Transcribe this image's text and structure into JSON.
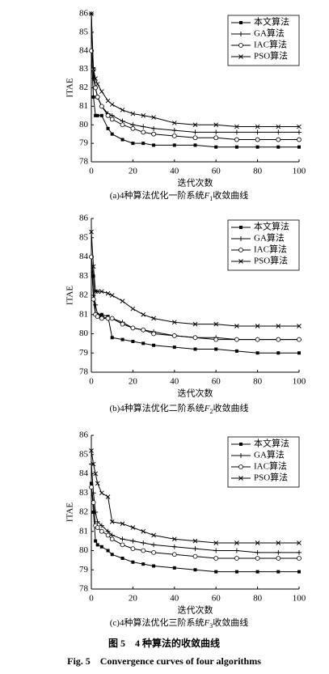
{
  "chart_data": [
    {
      "type": "line",
      "caption": [
        "(a)4种算法优化一阶系统",
        "F",
        "1",
        "收敛曲线"
      ],
      "xlabel": "迭代次数",
      "ylabel": "ITAE",
      "xlim": [
        0,
        100
      ],
      "xticks": [
        0,
        20,
        40,
        60,
        80,
        100
      ],
      "ylim": [
        78,
        86
      ],
      "yticks": [
        78,
        79,
        80,
        81,
        82,
        83,
        84,
        85,
        86
      ],
      "legend": "upper right",
      "x": [
        0,
        1,
        2,
        3,
        5,
        8,
        10,
        15,
        20,
        25,
        30,
        40,
        50,
        60,
        70,
        80,
        90,
        100
      ],
      "series": [
        {
          "name": "本文算法",
          "color": "#000000",
          "marker": "square",
          "values": [
            84,
            81.5,
            80.5,
            80.5,
            80.5,
            79.8,
            79.5,
            79.2,
            79.0,
            79.0,
            78.9,
            78.9,
            78.9,
            78.8,
            78.8,
            78.8,
            78.8,
            78.8
          ]
        },
        {
          "name": "GA算法",
          "color": "#000000",
          "marker": "plus",
          "values": [
            86,
            82.5,
            82,
            81.5,
            81,
            80.6,
            80.5,
            80.2,
            80.0,
            79.9,
            79.8,
            79.7,
            79.6,
            79.6,
            79.6,
            79.6,
            79.6,
            79.6
          ]
        },
        {
          "name": "IAC算法",
          "color": "#000000",
          "marker": "circle",
          "values": [
            84,
            83,
            82,
            81.5,
            81,
            80.5,
            80.3,
            80.0,
            79.8,
            79.6,
            79.5,
            79.4,
            79.3,
            79.3,
            79.2,
            79.2,
            79.2,
            79.2
          ]
        },
        {
          "name": "PSO算法",
          "color": "#000000",
          "marker": "x",
          "values": [
            86,
            83,
            82.5,
            82.2,
            81.8,
            81.3,
            81.1,
            80.8,
            80.6,
            80.5,
            80.4,
            80.1,
            80.0,
            80.0,
            79.9,
            79.9,
            79.9,
            79.9
          ]
        }
      ]
    },
    {
      "type": "line",
      "caption": [
        "(b)4种算法优化二阶系统",
        "F",
        "2",
        "收敛曲线"
      ],
      "xlabel": "迭代次数",
      "ylabel": "ITAE",
      "xlim": [
        0,
        100
      ],
      "xticks": [
        0,
        20,
        40,
        60,
        80,
        100
      ],
      "ylim": [
        78,
        86
      ],
      "yticks": [
        78,
        79,
        80,
        81,
        82,
        83,
        84,
        85,
        86
      ],
      "legend": "upper right",
      "x": [
        0,
        1,
        2,
        3,
        5,
        8,
        10,
        15,
        20,
        25,
        30,
        40,
        50,
        60,
        70,
        80,
        90,
        100
      ],
      "series": [
        {
          "name": "本文算法",
          "color": "#000000",
          "marker": "square",
          "values": [
            84,
            83,
            81,
            81,
            81,
            80.9,
            79.8,
            79.7,
            79.6,
            79.5,
            79.4,
            79.3,
            79.2,
            79.2,
            79.1,
            79.0,
            79.0,
            79.0
          ]
        },
        {
          "name": "GA算法",
          "color": "#000000",
          "marker": "plus",
          "values": [
            84,
            82,
            81.5,
            81,
            80.9,
            80.8,
            80.8,
            80.6,
            80.3,
            80.2,
            80.1,
            79.9,
            79.8,
            79.8,
            79.7,
            79.7,
            79.7,
            79.7
          ]
        },
        {
          "name": "IAC算法",
          "color": "#000000",
          "marker": "circle",
          "values": [
            84,
            81.8,
            81,
            80.9,
            80.8,
            80.8,
            80.8,
            80.5,
            80.3,
            80.2,
            80.0,
            79.9,
            79.8,
            79.7,
            79.7,
            79.7,
            79.7,
            79.7
          ]
        },
        {
          "name": "PSO算法",
          "color": "#000000",
          "marker": "x",
          "values": [
            85.3,
            83.5,
            82.2,
            82.2,
            82.2,
            82.1,
            82.0,
            81.7,
            81.3,
            81.0,
            80.8,
            80.6,
            80.5,
            80.5,
            80.4,
            80.4,
            80.4,
            80.4
          ]
        }
      ]
    },
    {
      "type": "line",
      "caption": [
        "(c)4种算法优化三阶系统",
        "F",
        "3",
        "收敛曲线"
      ],
      "xlabel": "迭代次数",
      "ylabel": "ITAE",
      "xlim": [
        0,
        100
      ],
      "xticks": [
        0,
        20,
        40,
        60,
        80,
        100
      ],
      "ylim": [
        78,
        86
      ],
      "yticks": [
        78,
        79,
        80,
        81,
        82,
        83,
        84,
        85,
        86
      ],
      "legend": "upper right",
      "x": [
        0,
        1,
        2,
        3,
        5,
        8,
        10,
        15,
        20,
        25,
        30,
        40,
        50,
        60,
        70,
        80,
        90,
        100
      ],
      "series": [
        {
          "name": "本文算法",
          "color": "#000000",
          "marker": "square",
          "values": [
            83.5,
            82,
            80.5,
            80.3,
            80.2,
            80.0,
            79.8,
            79.6,
            79.4,
            79.3,
            79.2,
            79.1,
            79.0,
            78.9,
            78.9,
            78.9,
            78.9,
            78.9
          ]
        },
        {
          "name": "GA算法",
          "color": "#000000",
          "marker": "plus",
          "values": [
            84.5,
            83,
            82,
            81.5,
            81.3,
            81.0,
            80.8,
            80.6,
            80.5,
            80.4,
            80.3,
            80.2,
            80.1,
            80.0,
            80.0,
            79.9,
            79.9,
            79.9
          ]
        },
        {
          "name": "IAC算法",
          "color": "#000000",
          "marker": "circle",
          "values": [
            83.3,
            82.5,
            81.3,
            81.2,
            81.0,
            80.8,
            80.6,
            80.3,
            80.1,
            80.0,
            79.9,
            79.8,
            79.7,
            79.6,
            79.6,
            79.6,
            79.6,
            79.6
          ]
        },
        {
          "name": "PSO算法",
          "color": "#000000",
          "marker": "x",
          "values": [
            85.2,
            84.5,
            84,
            83.5,
            83,
            82.8,
            81.5,
            81.4,
            81.2,
            81.0,
            80.8,
            80.6,
            80.5,
            80.4,
            80.4,
            80.4,
            80.4,
            80.4
          ]
        }
      ]
    }
  ],
  "figure_caption": {
    "zh": "图 5　4 种算法的收敛曲线",
    "en": "Fig. 5　Convergence curves of four algorithms"
  }
}
